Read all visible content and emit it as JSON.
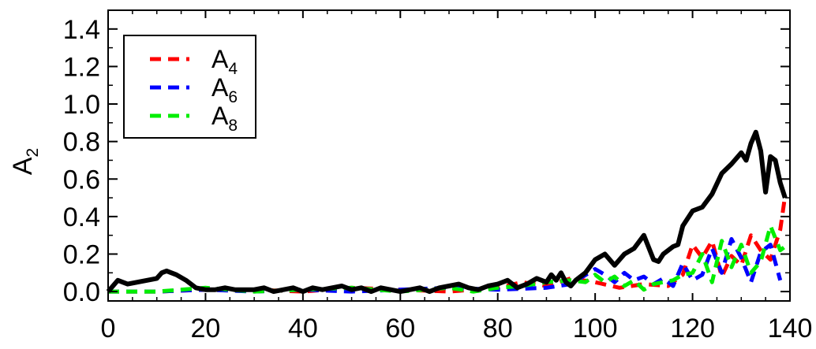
{
  "chart_data": {
    "type": "line",
    "title": "",
    "xlabel": "",
    "ylabel": "A",
    "ylabel_sub": "2",
    "xlim": [
      0,
      140
    ],
    "ylim": [
      -0.05,
      1.5
    ],
    "xticks": [
      0,
      20,
      40,
      60,
      80,
      100,
      120,
      140
    ],
    "xtick_labels": [
      "0",
      "20",
      "40",
      "60",
      "80",
      "100",
      "120",
      "140"
    ],
    "yticks": [
      0.0,
      0.2,
      0.4,
      0.6,
      0.8,
      1.0,
      1.2,
      1.4
    ],
    "ytick_labels": [
      "0.0",
      "0.2",
      "0.4",
      "0.6",
      "0.8",
      "1.0",
      "1.2",
      "1.4"
    ],
    "grid": false,
    "legend_position": "top-left",
    "series": [
      {
        "name": "",
        "color": "#000000",
        "style": "solid",
        "x": [
          0,
          2,
          4,
          6,
          8,
          10,
          11,
          12,
          13,
          14,
          16,
          18,
          20,
          22,
          24,
          26,
          28,
          30,
          32,
          34,
          36,
          38,
          40,
          42,
          44,
          46,
          48,
          50,
          52,
          54,
          56,
          58,
          60,
          62,
          64,
          66,
          68,
          70,
          72,
          74,
          76,
          78,
          80,
          82,
          84,
          86,
          88,
          90,
          91,
          92,
          93,
          94,
          95,
          96,
          98,
          100,
          102,
          104,
          106,
          108,
          110,
          112,
          113,
          114,
          116,
          117,
          118,
          120,
          122,
          124,
          126,
          128,
          130,
          131,
          132,
          133,
          134,
          135,
          136,
          137,
          138,
          139
        ],
        "y": [
          0.0,
          0.06,
          0.04,
          0.05,
          0.06,
          0.07,
          0.1,
          0.11,
          0.1,
          0.09,
          0.06,
          0.02,
          0.01,
          0.01,
          0.02,
          0.01,
          0.01,
          0.01,
          0.02,
          0.0,
          0.01,
          0.02,
          0.0,
          0.02,
          0.01,
          0.02,
          0.03,
          0.01,
          0.02,
          0.0,
          0.02,
          0.01,
          0.0,
          0.01,
          0.02,
          0.0,
          0.02,
          0.03,
          0.04,
          0.02,
          0.01,
          0.03,
          0.04,
          0.06,
          0.02,
          0.04,
          0.07,
          0.05,
          0.09,
          0.06,
          0.1,
          0.05,
          0.03,
          0.06,
          0.1,
          0.17,
          0.2,
          0.14,
          0.2,
          0.23,
          0.3,
          0.17,
          0.16,
          0.2,
          0.24,
          0.25,
          0.35,
          0.43,
          0.45,
          0.52,
          0.63,
          0.68,
          0.74,
          0.7,
          0.79,
          0.85,
          0.75,
          0.53,
          0.72,
          0.7,
          0.58,
          0.5
        ]
      },
      {
        "name": "A",
        "name_sub": "4",
        "color": "#ff0000",
        "style": "dashed",
        "x": [
          0,
          10,
          20,
          30,
          40,
          50,
          60,
          70,
          80,
          85,
          90,
          95,
          100,
          105,
          110,
          115,
          118,
          120,
          122,
          124,
          126,
          128,
          130,
          132,
          134,
          136,
          138,
          139
        ],
        "y": [
          0.0,
          0.0,
          0.01,
          0.01,
          0.0,
          0.02,
          0.01,
          0.0,
          0.02,
          0.05,
          0.03,
          0.07,
          0.05,
          0.02,
          0.04,
          0.03,
          0.09,
          0.25,
          0.18,
          0.27,
          0.08,
          0.19,
          0.14,
          0.3,
          0.22,
          0.17,
          0.33,
          0.51
        ]
      },
      {
        "name": "A",
        "name_sub": "6",
        "color": "#0000ff",
        "style": "dashed",
        "x": [
          0,
          10,
          20,
          30,
          40,
          50,
          60,
          70,
          80,
          90,
          95,
          100,
          102,
          104,
          106,
          108,
          110,
          112,
          114,
          116,
          118,
          120,
          122,
          124,
          126,
          128,
          130,
          132,
          134,
          136,
          138
        ],
        "y": [
          0.0,
          0.0,
          0.01,
          0.0,
          0.01,
          0.0,
          0.01,
          0.02,
          0.01,
          0.02,
          0.04,
          0.12,
          0.09,
          0.05,
          0.1,
          0.06,
          0.08,
          0.04,
          0.07,
          0.03,
          0.15,
          0.06,
          0.09,
          0.23,
          0.1,
          0.28,
          0.18,
          0.05,
          0.21,
          0.25,
          0.06
        ]
      },
      {
        "name": "A",
        "name_sub": "8",
        "color": "#00ee00",
        "style": "dashed",
        "x": [
          0,
          10,
          20,
          30,
          40,
          50,
          60,
          70,
          75,
          80,
          85,
          90,
          95,
          98,
          100,
          102,
          104,
          106,
          108,
          110,
          112,
          114,
          116,
          118,
          120,
          122,
          124,
          126,
          128,
          130,
          132,
          134,
          136,
          138,
          139
        ],
        "y": [
          0.0,
          0.0,
          0.02,
          0.0,
          0.01,
          0.02,
          0.0,
          0.02,
          0.0,
          0.02,
          0.03,
          0.05,
          0.06,
          0.05,
          0.09,
          0.05,
          0.08,
          0.03,
          0.06,
          0.01,
          0.04,
          0.05,
          0.06,
          0.09,
          0.1,
          0.2,
          0.05,
          0.27,
          0.13,
          0.25,
          0.1,
          0.16,
          0.35,
          0.22,
          0.24
        ]
      }
    ]
  }
}
